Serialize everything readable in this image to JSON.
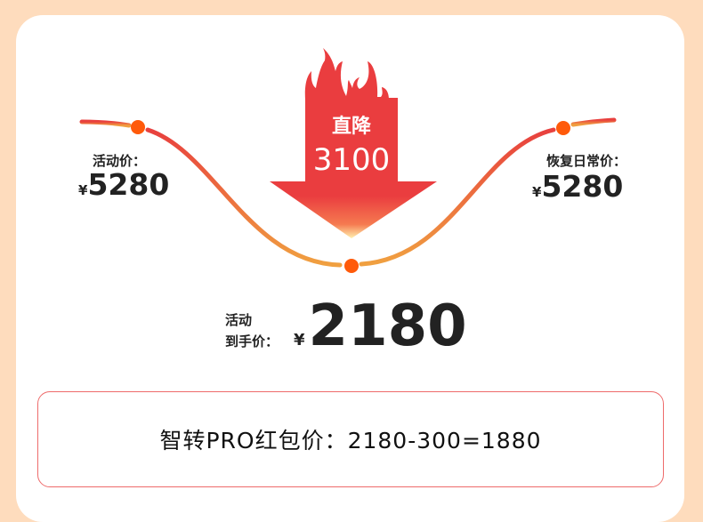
{
  "drop": {
    "label": "直降",
    "amount": "3100"
  },
  "left_price": {
    "label": "活动价：",
    "currency": "¥",
    "value": "5280"
  },
  "right_price": {
    "label": "恢复日常价：",
    "currency": "¥",
    "value": "5280"
  },
  "final_price": {
    "label_line1": "活动",
    "label_line2": "到手价：",
    "currency": "¥",
    "value": "2180"
  },
  "coupon_text": "智转PRO红包价：2180-300=1880",
  "colors": {
    "background": "#fedcbd",
    "arrow": "#ea3d3f",
    "dot": "#ff5a0a",
    "curve_end": "#e8403e",
    "curve_mid": "#f0923a"
  }
}
